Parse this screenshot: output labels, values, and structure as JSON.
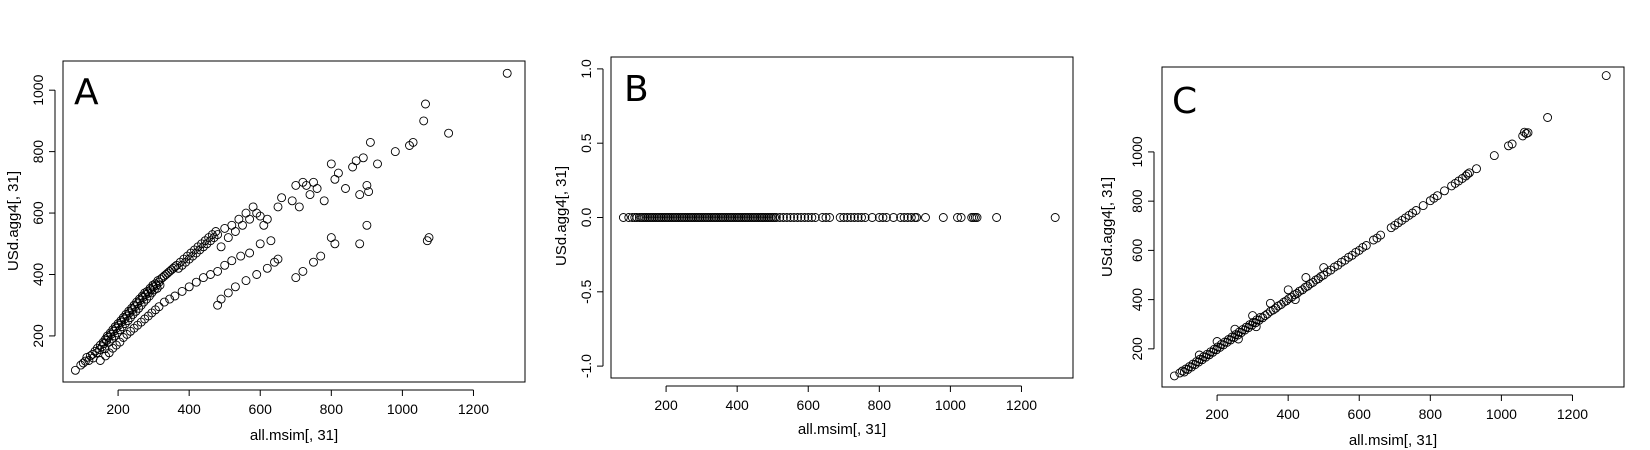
{
  "chart_data": [
    {
      "type": "scatter",
      "panel": "A",
      "xlabel": "all.msim[, 31]",
      "ylabel": "USd.agg4[, 31]",
      "x_ticks": [
        200,
        400,
        600,
        800,
        1000,
        1200
      ],
      "y_ticks": [
        200,
        400,
        600,
        800,
        1000
      ],
      "xlim": [
        45,
        1345
      ],
      "ylim": [
        50,
        1095
      ],
      "grid": false,
      "x": [
        80,
        95,
        102,
        108,
        112,
        118,
        122,
        128,
        130,
        135,
        140,
        142,
        148,
        150,
        155,
        158,
        160,
        162,
        165,
        168,
        170,
        172,
        175,
        178,
        180,
        182,
        185,
        188,
        190,
        192,
        195,
        198,
        200,
        202,
        205,
        208,
        210,
        212,
        215,
        218,
        220,
        222,
        225,
        228,
        230,
        232,
        235,
        238,
        240,
        242,
        245,
        248,
        250,
        252,
        255,
        258,
        260,
        262,
        265,
        268,
        270,
        272,
        275,
        278,
        280,
        282,
        285,
        288,
        290,
        292,
        295,
        298,
        300,
        302,
        305,
        308,
        310,
        312,
        315,
        318,
        320,
        325,
        330,
        335,
        340,
        345,
        350,
        355,
        360,
        365,
        370,
        375,
        380,
        385,
        390,
        395,
        400,
        405,
        410,
        415,
        420,
        425,
        430,
        435,
        440,
        445,
        450,
        455,
        460,
        465,
        470,
        475,
        480,
        490,
        500,
        510,
        520,
        530,
        540,
        550,
        560,
        570,
        580,
        590,
        600,
        610,
        620,
        640,
        650,
        660,
        690,
        700,
        710,
        720,
        730,
        740,
        750,
        760,
        780,
        800,
        810,
        820,
        840,
        860,
        870,
        880,
        890,
        900,
        905,
        910,
        930,
        980,
        1020,
        1030,
        1060,
        1065,
        1070,
        1075,
        1130,
        1295,
        150,
        165,
        175,
        185,
        195,
        205,
        215,
        225,
        235,
        245,
        255,
        265,
        275,
        285,
        295,
        305,
        315,
        330,
        345,
        360,
        380,
        400,
        420,
        440,
        460,
        480,
        500,
        520,
        545,
        570,
        600,
        630,
        480,
        490,
        510,
        530,
        560,
        590,
        620,
        650,
        700,
        720,
        750,
        770,
        800,
        810,
        880,
        900
      ],
      "y": [
        88,
        105,
        112,
        118,
        130,
        120,
        135,
        140,
        128,
        150,
        145,
        160,
        155,
        170,
        165,
        180,
        175,
        158,
        190,
        185,
        200,
        195,
        180,
        210,
        205,
        190,
        220,
        215,
        200,
        230,
        225,
        210,
        240,
        235,
        220,
        250,
        245,
        230,
        260,
        255,
        240,
        270,
        265,
        250,
        280,
        275,
        260,
        290,
        285,
        270,
        300,
        295,
        280,
        310,
        305,
        290,
        320,
        315,
        300,
        330,
        325,
        310,
        340,
        335,
        320,
        345,
        340,
        330,
        355,
        350,
        340,
        365,
        360,
        350,
        370,
        365,
        355,
        380,
        375,
        365,
        385,
        390,
        395,
        400,
        405,
        410,
        415,
        420,
        425,
        430,
        420,
        440,
        430,
        450,
        440,
        460,
        450,
        470,
        460,
        480,
        470,
        490,
        480,
        500,
        490,
        510,
        500,
        520,
        510,
        530,
        520,
        540,
        530,
        490,
        550,
        520,
        560,
        540,
        580,
        560,
        600,
        580,
        620,
        600,
        590,
        560,
        580,
        440,
        620,
        650,
        640,
        690,
        620,
        700,
        690,
        660,
        700,
        680,
        640,
        760,
        710,
        730,
        680,
        750,
        770,
        660,
        780,
        690,
        670,
        830,
        760,
        800,
        820,
        830,
        900,
        955,
        510,
        520,
        860,
        1055,
        120,
        135,
        145,
        160,
        170,
        180,
        195,
        205,
        215,
        225,
        235,
        245,
        255,
        265,
        275,
        285,
        295,
        310,
        320,
        330,
        345,
        360,
        375,
        390,
        400,
        410,
        430,
        445,
        460,
        470,
        500,
        510,
        300,
        320,
        340,
        360,
        380,
        400,
        420,
        450,
        390,
        410,
        440,
        460,
        520,
        500,
        500,
        560
      ]
    },
    {
      "type": "scatter",
      "panel": "B",
      "xlabel": "all.msim[, 31]",
      "ylabel": "USd.agg4[, 31]",
      "x_ticks": [
        200,
        400,
        600,
        800,
        1000,
        1200
      ],
      "y_ticks": [
        -1.0,
        -0.5,
        0.0,
        0.5,
        1.0
      ],
      "y_tick_labels": [
        "-1.0",
        "-0.5",
        "0.0",
        "0.5",
        "1.0"
      ],
      "xlim": [
        45,
        1345
      ],
      "ylim": [
        -1.08,
        1.08
      ],
      "grid": false,
      "x": [
        80,
        95,
        105,
        112,
        118,
        125,
        130,
        135,
        140,
        145,
        150,
        155,
        160,
        165,
        170,
        175,
        180,
        185,
        190,
        195,
        200,
        205,
        210,
        215,
        220,
        225,
        230,
        235,
        240,
        245,
        250,
        255,
        260,
        265,
        270,
        275,
        280,
        285,
        290,
        295,
        300,
        305,
        310,
        315,
        320,
        325,
        330,
        335,
        340,
        345,
        350,
        355,
        360,
        365,
        370,
        375,
        380,
        385,
        390,
        395,
        400,
        405,
        410,
        415,
        420,
        425,
        430,
        435,
        440,
        445,
        450,
        455,
        460,
        465,
        470,
        475,
        480,
        485,
        490,
        495,
        500,
        505,
        510,
        520,
        530,
        540,
        550,
        560,
        570,
        580,
        590,
        600,
        610,
        620,
        640,
        650,
        660,
        690,
        700,
        710,
        720,
        730,
        740,
        750,
        760,
        780,
        800,
        810,
        820,
        840,
        860,
        870,
        880,
        890,
        900,
        905,
        930,
        980,
        1020,
        1030,
        1060,
        1065,
        1070,
        1075,
        1130,
        1295
      ],
      "y": [
        0,
        0,
        0,
        0,
        0,
        0,
        0,
        0,
        0,
        0,
        0,
        0,
        0,
        0,
        0,
        0,
        0,
        0,
        0,
        0,
        0,
        0,
        0,
        0,
        0,
        0,
        0,
        0,
        0,
        0,
        0,
        0,
        0,
        0,
        0,
        0,
        0,
        0,
        0,
        0,
        0,
        0,
        0,
        0,
        0,
        0,
        0,
        0,
        0,
        0,
        0,
        0,
        0,
        0,
        0,
        0,
        0,
        0,
        0,
        0,
        0,
        0,
        0,
        0,
        0,
        0,
        0,
        0,
        0,
        0,
        0,
        0,
        0,
        0,
        0,
        0,
        0,
        0,
        0,
        0,
        0,
        0,
        0,
        0,
        0,
        0,
        0,
        0,
        0,
        0,
        0,
        0,
        0,
        0,
        0,
        0,
        0,
        0,
        0,
        0,
        0,
        0,
        0,
        0,
        0,
        0,
        0,
        0,
        0,
        0,
        0,
        0,
        0,
        0,
        0,
        0,
        0,
        0,
        0,
        0,
        0,
        0,
        0,
        0,
        0,
        0
      ]
    },
    {
      "type": "scatter",
      "panel": "C",
      "xlabel": "all.msim[, 31]",
      "ylabel": "USd.agg4[, 31]",
      "x_ticks": [
        200,
        400,
        600,
        800,
        1000,
        1200
      ],
      "y_ticks": [
        200,
        400,
        600,
        800,
        1000
      ],
      "xlim": [
        45,
        1345
      ],
      "ylim": [
        45,
        1345
      ],
      "grid": false,
      "x": [
        80,
        95,
        102,
        108,
        112,
        118,
        122,
        128,
        132,
        138,
        142,
        148,
        152,
        158,
        162,
        168,
        172,
        178,
        182,
        188,
        192,
        198,
        202,
        208,
        212,
        218,
        222,
        228,
        232,
        238,
        242,
        248,
        252,
        258,
        262,
        268,
        272,
        278,
        282,
        288,
        292,
        298,
        302,
        308,
        312,
        318,
        322,
        328,
        335,
        342,
        350,
        358,
        365,
        372,
        380,
        388,
        395,
        402,
        410,
        418,
        425,
        432,
        440,
        448,
        455,
        462,
        470,
        478,
        485,
        492,
        500,
        510,
        520,
        530,
        540,
        550,
        560,
        570,
        580,
        590,
        600,
        610,
        620,
        640,
        650,
        660,
        690,
        700,
        710,
        720,
        730,
        740,
        750,
        760,
        780,
        800,
        810,
        820,
        840,
        860,
        870,
        880,
        890,
        900,
        905,
        910,
        930,
        980,
        1020,
        1030,
        1060,
        1065,
        1070,
        1075,
        1130,
        1295,
        150,
        200,
        250,
        300,
        350,
        400,
        450,
        500,
        260,
        310,
        420
      ],
      "y": [
        90,
        102,
        110,
        106,
        118,
        116,
        128,
        126,
        138,
        136,
        148,
        146,
        158,
        156,
        168,
        166,
        178,
        176,
        188,
        186,
        198,
        196,
        208,
        206,
        218,
        216,
        228,
        226,
        238,
        236,
        248,
        246,
        258,
        256,
        268,
        266,
        278,
        276,
        288,
        286,
        298,
        296,
        308,
        306,
        318,
        316,
        328,
        326,
        335,
        342,
        352,
        358,
        365,
        374,
        380,
        390,
        395,
        404,
        410,
        420,
        425,
        434,
        440,
        450,
        455,
        464,
        470,
        480,
        485,
        494,
        500,
        512,
        520,
        532,
        540,
        552,
        560,
        572,
        580,
        592,
        600,
        612,
        620,
        642,
        650,
        662,
        692,
        702,
        712,
        722,
        732,
        742,
        752,
        762,
        782,
        802,
        812,
        822,
        842,
        862,
        872,
        882,
        892,
        902,
        910,
        915,
        932,
        985,
        1025,
        1032,
        1065,
        1080,
        1075,
        1078,
        1140,
        1310,
        175,
        230,
        280,
        335,
        385,
        440,
        490,
        530,
        240,
        290,
        400
      ]
    }
  ],
  "panels": {
    "a": {
      "letter": "A"
    },
    "b": {
      "letter": "B"
    },
    "c": {
      "letter": "C"
    }
  }
}
